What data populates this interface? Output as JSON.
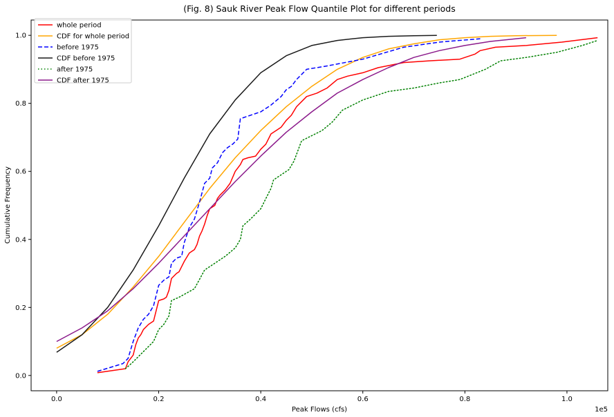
{
  "chart_data": {
    "type": "line",
    "title": "(Fig. 8) Sauk River Peak Flow Quantile Plot for different periods",
    "xlabel": "Peak Flows (cfs)",
    "ylabel": "Cumulative Frequency",
    "x_offset_label": "1e5",
    "xlim": [
      -0.05,
      1.08
    ],
    "ylim": [
      -0.045,
      1.045
    ],
    "x_ticks": [
      0.0,
      0.2,
      0.4,
      0.6,
      0.8,
      1.0
    ],
    "x_tick_labels": [
      "0.0",
      "0.2",
      "0.4",
      "0.6",
      "0.8",
      "1.0"
    ],
    "y_ticks": [
      0.0,
      0.2,
      0.4,
      0.6,
      0.8,
      1.0
    ],
    "y_tick_labels": [
      "0.0",
      "0.2",
      "0.4",
      "0.6",
      "0.8",
      "1.0"
    ],
    "grid": false,
    "legend_position": "top-left",
    "series": [
      {
        "name": "whole period",
        "color": "#ff0000",
        "style": "solid",
        "points": [
          [
            0.08,
            0.008
          ],
          [
            0.135,
            0.02
          ],
          [
            0.14,
            0.04
          ],
          [
            0.15,
            0.06
          ],
          [
            0.155,
            0.09
          ],
          [
            0.16,
            0.11
          ],
          [
            0.165,
            0.12
          ],
          [
            0.17,
            0.135
          ],
          [
            0.18,
            0.15
          ],
          [
            0.19,
            0.16
          ],
          [
            0.195,
            0.19
          ],
          [
            0.2,
            0.22
          ],
          [
            0.21,
            0.225
          ],
          [
            0.215,
            0.23
          ],
          [
            0.22,
            0.25
          ],
          [
            0.225,
            0.285
          ],
          [
            0.235,
            0.3
          ],
          [
            0.24,
            0.305
          ],
          [
            0.245,
            0.32
          ],
          [
            0.25,
            0.335
          ],
          [
            0.26,
            0.36
          ],
          [
            0.27,
            0.37
          ],
          [
            0.275,
            0.385
          ],
          [
            0.28,
            0.41
          ],
          [
            0.285,
            0.425
          ],
          [
            0.29,
            0.445
          ],
          [
            0.295,
            0.47
          ],
          [
            0.3,
            0.49
          ],
          [
            0.31,
            0.5
          ],
          [
            0.315,
            0.52
          ],
          [
            0.32,
            0.53
          ],
          [
            0.33,
            0.545
          ],
          [
            0.34,
            0.565
          ],
          [
            0.35,
            0.6
          ],
          [
            0.36,
            0.62
          ],
          [
            0.365,
            0.635
          ],
          [
            0.375,
            0.64
          ],
          [
            0.39,
            0.645
          ],
          [
            0.4,
            0.665
          ],
          [
            0.41,
            0.68
          ],
          [
            0.42,
            0.71
          ],
          [
            0.43,
            0.72
          ],
          [
            0.44,
            0.73
          ],
          [
            0.45,
            0.75
          ],
          [
            0.46,
            0.765
          ],
          [
            0.47,
            0.79
          ],
          [
            0.48,
            0.805
          ],
          [
            0.49,
            0.82
          ],
          [
            0.51,
            0.83
          ],
          [
            0.53,
            0.845
          ],
          [
            0.55,
            0.87
          ],
          [
            0.57,
            0.88
          ],
          [
            0.6,
            0.89
          ],
          [
            0.63,
            0.905
          ],
          [
            0.68,
            0.92
          ],
          [
            0.73,
            0.925
          ],
          [
            0.79,
            0.93
          ],
          [
            0.82,
            0.945
          ],
          [
            0.83,
            0.955
          ],
          [
            0.86,
            0.965
          ],
          [
            0.92,
            0.97
          ],
          [
            0.99,
            0.98
          ],
          [
            1.06,
            0.993
          ]
        ]
      },
      {
        "name": "CDF for whole period",
        "color": "#ffa500",
        "style": "solid",
        "points": [
          [
            0.0,
            0.08
          ],
          [
            0.05,
            0.12
          ],
          [
            0.1,
            0.18
          ],
          [
            0.15,
            0.26
          ],
          [
            0.2,
            0.35
          ],
          [
            0.25,
            0.45
          ],
          [
            0.3,
            0.55
          ],
          [
            0.35,
            0.64
          ],
          [
            0.4,
            0.72
          ],
          [
            0.45,
            0.79
          ],
          [
            0.5,
            0.85
          ],
          [
            0.55,
            0.9
          ],
          [
            0.6,
            0.935
          ],
          [
            0.65,
            0.96
          ],
          [
            0.7,
            0.975
          ],
          [
            0.75,
            0.987
          ],
          [
            0.8,
            0.993
          ],
          [
            0.85,
            0.997
          ],
          [
            0.9,
            0.999
          ],
          [
            0.98,
            1.0
          ]
        ]
      },
      {
        "name": "before 1975",
        "color": "#0000ff",
        "style": "dashed",
        "points": [
          [
            0.08,
            0.012
          ],
          [
            0.13,
            0.035
          ],
          [
            0.14,
            0.05
          ],
          [
            0.15,
            0.1
          ],
          [
            0.16,
            0.14
          ],
          [
            0.17,
            0.165
          ],
          [
            0.18,
            0.18
          ],
          [
            0.19,
            0.205
          ],
          [
            0.2,
            0.265
          ],
          [
            0.21,
            0.28
          ],
          [
            0.22,
            0.29
          ],
          [
            0.225,
            0.33
          ],
          [
            0.235,
            0.345
          ],
          [
            0.245,
            0.35
          ],
          [
            0.25,
            0.39
          ],
          [
            0.26,
            0.435
          ],
          [
            0.27,
            0.46
          ],
          [
            0.28,
            0.51
          ],
          [
            0.29,
            0.565
          ],
          [
            0.3,
            0.58
          ],
          [
            0.305,
            0.61
          ],
          [
            0.315,
            0.625
          ],
          [
            0.325,
            0.655
          ],
          [
            0.335,
            0.67
          ],
          [
            0.345,
            0.68
          ],
          [
            0.355,
            0.695
          ],
          [
            0.36,
            0.755
          ],
          [
            0.38,
            0.765
          ],
          [
            0.4,
            0.775
          ],
          [
            0.42,
            0.795
          ],
          [
            0.44,
            0.82
          ],
          [
            0.45,
            0.84
          ],
          [
            0.46,
            0.85
          ],
          [
            0.47,
            0.87
          ],
          [
            0.48,
            0.885
          ],
          [
            0.49,
            0.9
          ],
          [
            0.53,
            0.91
          ],
          [
            0.6,
            0.93
          ],
          [
            0.68,
            0.965
          ],
          [
            0.75,
            0.98
          ],
          [
            0.83,
            0.99
          ]
        ]
      },
      {
        "name": "CDF before 1975",
        "color": "#1a1a1a",
        "style": "solid",
        "points": [
          [
            0.0,
            0.068
          ],
          [
            0.05,
            0.12
          ],
          [
            0.1,
            0.2
          ],
          [
            0.15,
            0.31
          ],
          [
            0.2,
            0.44
          ],
          [
            0.25,
            0.58
          ],
          [
            0.3,
            0.71
          ],
          [
            0.35,
            0.81
          ],
          [
            0.4,
            0.89
          ],
          [
            0.45,
            0.94
          ],
          [
            0.5,
            0.97
          ],
          [
            0.55,
            0.985
          ],
          [
            0.6,
            0.993
          ],
          [
            0.65,
            0.997
          ],
          [
            0.7,
            0.999
          ],
          [
            0.745,
            1.0
          ]
        ]
      },
      {
        "name": "after 1975",
        "color": "#008000",
        "style": "dotted",
        "points": [
          [
            0.135,
            0.02
          ],
          [
            0.15,
            0.04
          ],
          [
            0.17,
            0.07
          ],
          [
            0.19,
            0.1
          ],
          [
            0.2,
            0.135
          ],
          [
            0.21,
            0.15
          ],
          [
            0.22,
            0.175
          ],
          [
            0.225,
            0.22
          ],
          [
            0.24,
            0.23
          ],
          [
            0.27,
            0.255
          ],
          [
            0.29,
            0.31
          ],
          [
            0.31,
            0.33
          ],
          [
            0.33,
            0.35
          ],
          [
            0.35,
            0.375
          ],
          [
            0.36,
            0.4
          ],
          [
            0.365,
            0.44
          ],
          [
            0.38,
            0.46
          ],
          [
            0.39,
            0.475
          ],
          [
            0.4,
            0.49
          ],
          [
            0.41,
            0.52
          ],
          [
            0.42,
            0.55
          ],
          [
            0.425,
            0.575
          ],
          [
            0.44,
            0.59
          ],
          [
            0.455,
            0.605
          ],
          [
            0.465,
            0.63
          ],
          [
            0.48,
            0.69
          ],
          [
            0.5,
            0.705
          ],
          [
            0.52,
            0.72
          ],
          [
            0.54,
            0.745
          ],
          [
            0.56,
            0.78
          ],
          [
            0.6,
            0.81
          ],
          [
            0.65,
            0.835
          ],
          [
            0.7,
            0.845
          ],
          [
            0.75,
            0.86
          ],
          [
            0.79,
            0.87
          ],
          [
            0.84,
            0.9
          ],
          [
            0.87,
            0.925
          ],
          [
            0.92,
            0.935
          ],
          [
            0.98,
            0.95
          ],
          [
            1.03,
            0.97
          ],
          [
            1.06,
            0.985
          ]
        ]
      },
      {
        "name": "CDF after 1975",
        "color": "#8b1a8b",
        "style": "solid",
        "points": [
          [
            0.0,
            0.1
          ],
          [
            0.05,
            0.14
          ],
          [
            0.1,
            0.19
          ],
          [
            0.15,
            0.255
          ],
          [
            0.2,
            0.33
          ],
          [
            0.25,
            0.41
          ],
          [
            0.3,
            0.49
          ],
          [
            0.35,
            0.57
          ],
          [
            0.4,
            0.645
          ],
          [
            0.45,
            0.715
          ],
          [
            0.5,
            0.775
          ],
          [
            0.55,
            0.83
          ],
          [
            0.6,
            0.87
          ],
          [
            0.65,
            0.905
          ],
          [
            0.7,
            0.935
          ],
          [
            0.75,
            0.955
          ],
          [
            0.8,
            0.97
          ],
          [
            0.85,
            0.982
          ],
          [
            0.92,
            0.993
          ]
        ]
      }
    ]
  }
}
